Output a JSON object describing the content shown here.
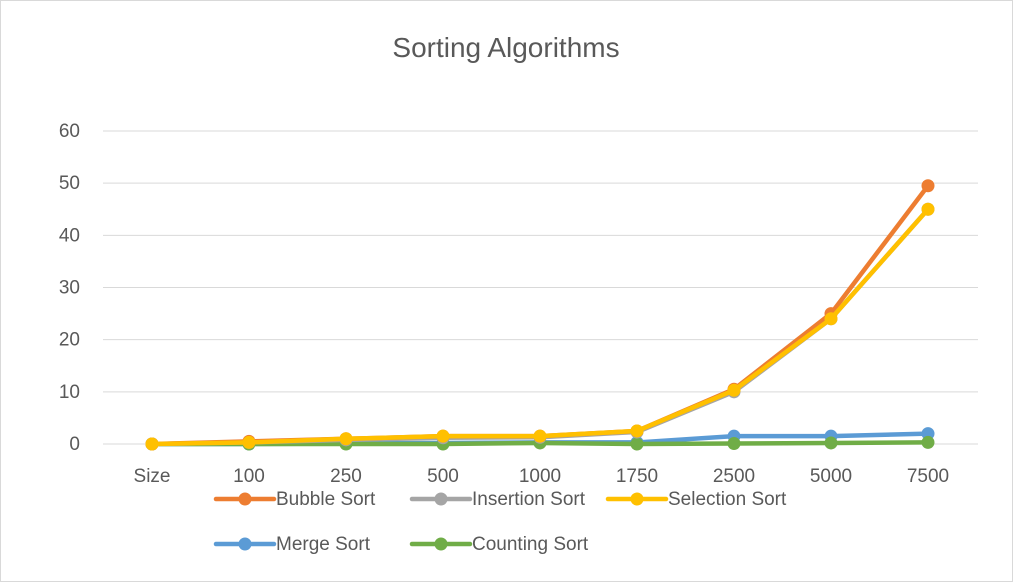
{
  "chart_data": {
    "type": "line",
    "title": "Sorting Algorithms",
    "xlabel": "",
    "ylabel": "",
    "categories": [
      "Size",
      "100",
      "250",
      "500",
      "1000",
      "1750",
      "2500",
      "5000",
      "7500"
    ],
    "ylim": [
      0,
      60
    ],
    "yticks": [
      "0",
      "10",
      "20",
      "30",
      "40",
      "50",
      "60"
    ],
    "grid": true,
    "legend_position": "bottom",
    "series": [
      {
        "name": "Bubble Sort",
        "color": "#ED7D31",
        "values": [
          0,
          0.5,
          1,
          1.5,
          1.5,
          2.5,
          10.5,
          25,
          49.5
        ]
      },
      {
        "name": "Insertion Sort",
        "color": "#A5A5A5",
        "values": [
          0,
          0.3,
          0.8,
          1.2,
          1.3,
          2.3,
          10,
          24,
          45
        ]
      },
      {
        "name": "Selection Sort",
        "color": "#FFC000",
        "values": [
          0,
          0.3,
          1,
          1.5,
          1.5,
          2.5,
          10.3,
          24,
          45
        ]
      },
      {
        "name": "Merge Sort",
        "color": "#5B9BD5",
        "values": [
          0,
          0,
          0.1,
          0.2,
          0.3,
          0.3,
          1.5,
          1.5,
          2
        ]
      },
      {
        "name": "Counting Sort",
        "color": "#70AD47",
        "values": [
          0,
          0,
          0,
          0,
          0.2,
          0,
          0.1,
          0.2,
          0.3
        ]
      }
    ]
  }
}
